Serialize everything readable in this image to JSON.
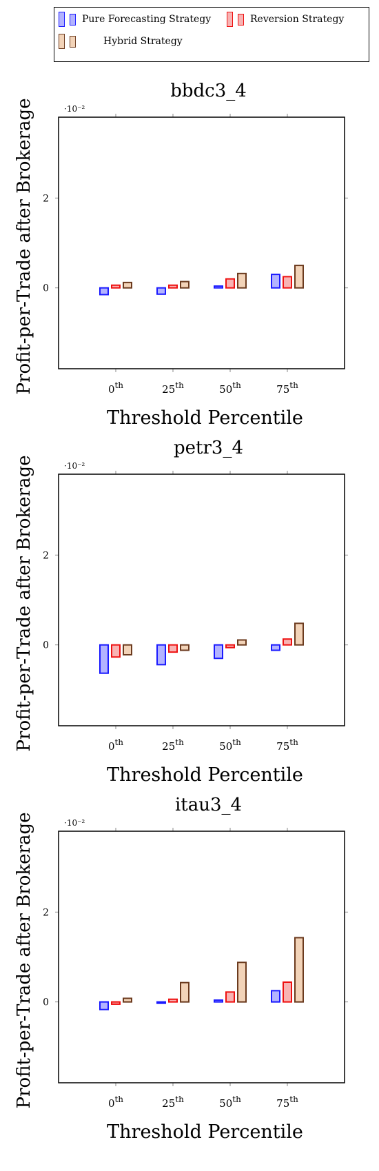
{
  "legend": {
    "pure": {
      "label": "Pure Forecasting Strategy",
      "stroke": "#1a1aff",
      "fill": "#b3b3ff"
    },
    "reversion": {
      "label": "Reversion Strategy",
      "stroke": "#ee1111",
      "fill": "#f8b3b3"
    },
    "hybrid": {
      "label": "Hybrid Strategy",
      "stroke": "#6b3a1e",
      "fill": "#f2d3b8"
    }
  },
  "chart_data": [
    {
      "type": "bar",
      "title": "bbdc3_4",
      "xlabel": "Threshold Percentile",
      "ylabel": "Profit-per-Trade after Brokerage",
      "y_scale_label": "·10⁻²",
      "categories": [
        "0th",
        "25th",
        "50th",
        "75th"
      ],
      "ylim": [
        -1.8,
        3.8
      ],
      "yticks": [
        0,
        2
      ],
      "series": [
        {
          "name": "Pure Forecasting Strategy",
          "values": [
            -0.15,
            -0.14,
            0.04,
            0.3
          ]
        },
        {
          "name": "Reversion Strategy",
          "values": [
            0.06,
            0.06,
            0.2,
            0.25
          ]
        },
        {
          "name": "Hybrid Strategy",
          "values": [
            0.12,
            0.14,
            0.32,
            0.5
          ]
        }
      ]
    },
    {
      "type": "bar",
      "title": "petr3_4",
      "xlabel": "Threshold Percentile",
      "ylabel": "Profit-per-Trade after Brokerage",
      "y_scale_label": "·10⁻²",
      "categories": [
        "0th",
        "25th",
        "50th",
        "75th"
      ],
      "ylim": [
        -1.8,
        3.8
      ],
      "yticks": [
        0,
        2
      ],
      "series": [
        {
          "name": "Pure Forecasting Strategy",
          "values": [
            -0.63,
            -0.44,
            -0.3,
            -0.12
          ]
        },
        {
          "name": "Reversion Strategy",
          "values": [
            -0.27,
            -0.16,
            -0.06,
            0.13
          ]
        },
        {
          "name": "Hybrid Strategy",
          "values": [
            -0.22,
            -0.12,
            0.11,
            0.48
          ]
        }
      ]
    },
    {
      "type": "bar",
      "title": "itau3_4",
      "xlabel": "Threshold Percentile",
      "ylabel": "Profit-per-Trade after Brokerage",
      "y_scale_label": "·10⁻²",
      "categories": [
        "0th",
        "25th",
        "50th",
        "75th"
      ],
      "ylim": [
        -1.8,
        3.8
      ],
      "yticks": [
        0,
        2
      ],
      "series": [
        {
          "name": "Pure Forecasting Strategy",
          "values": [
            -0.17,
            -0.03,
            0.04,
            0.25
          ]
        },
        {
          "name": "Reversion Strategy",
          "values": [
            -0.05,
            0.06,
            0.22,
            0.44
          ]
        },
        {
          "name": "Hybrid Strategy",
          "values": [
            0.08,
            0.43,
            0.88,
            1.43
          ]
        }
      ]
    }
  ]
}
